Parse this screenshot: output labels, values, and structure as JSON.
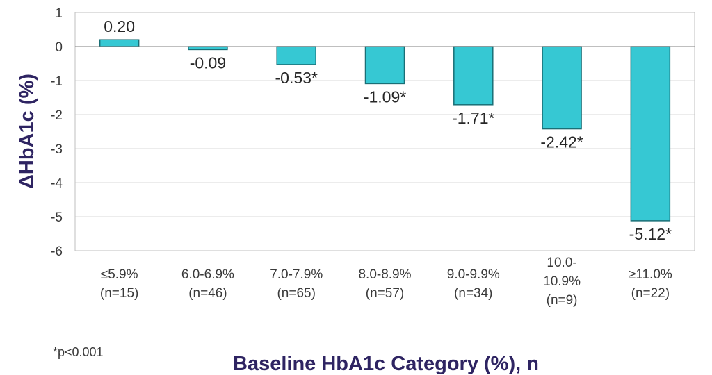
{
  "chart_data": {
    "type": "bar",
    "categories": [
      [
        "≤5.9%",
        "(n=15)"
      ],
      [
        "6.0-6.9%",
        "(n=46)"
      ],
      [
        "7.0-7.9%",
        "(n=65)"
      ],
      [
        "8.0-8.9%",
        "(n=57)"
      ],
      [
        "9.0-9.9%",
        "(n=34)"
      ],
      [
        "10.0-",
        "10.9%",
        "(n=9)"
      ],
      [
        "≥11.0%",
        "(n=22)"
      ]
    ],
    "values": [
      0.2,
      -0.09,
      -0.53,
      -1.09,
      -1.71,
      -2.42,
      -5.12
    ],
    "data_labels": [
      "0.20",
      "-0.09",
      "-0.53*",
      "-1.09*",
      "-1.71*",
      "-2.42*",
      "-5.12*"
    ],
    "ylim": [
      -6,
      1
    ],
    "yticks": [
      1,
      0,
      -1,
      -2,
      -3,
      -4,
      -5,
      -6
    ],
    "ylabel": "ΔHbA1c (%)",
    "xlabel": "Baseline HbA1c Category (%), n",
    "grid": true,
    "colors": {
      "bar": "#36c8d3",
      "bar_edge": "#1a6f76",
      "axis_title": "#2e2462",
      "grid": "#d9d9d9"
    }
  },
  "footnote": "*p<0.001"
}
